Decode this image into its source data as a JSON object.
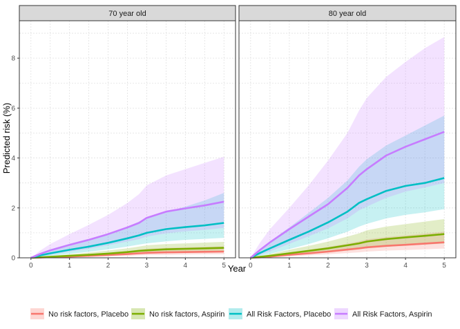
{
  "chart_data": {
    "type": "line",
    "ylabel": "Predicted risk (%)",
    "xlabel": "Year",
    "xlim": [
      -0.3,
      5.3
    ],
    "ylim": [
      0,
      9.5
    ],
    "x_ticks": [
      0,
      1,
      2,
      3,
      4,
      5
    ],
    "y_ticks": [
      0,
      2,
      4,
      6,
      8
    ],
    "x": [
      0,
      0.25,
      0.5,
      1,
      1.5,
      2,
      2.5,
      2.8,
      3,
      3.5,
      4,
      4.5,
      5
    ],
    "legend_position": "bottom",
    "panels": [
      {
        "title": "70 year old",
        "series": [
          {
            "name": "No risk factors, Placebo",
            "color": "#F8766D",
            "values": [
              0,
              0.01,
              0.03,
              0.05,
              0.08,
              0.11,
              0.15,
              0.18,
              0.2,
              0.22,
              0.23,
              0.24,
              0.25
            ],
            "lower": [
              0,
              0,
              0.01,
              0.02,
              0.04,
              0.06,
              0.08,
              0.1,
              0.11,
              0.12,
              0.13,
              0.14,
              0.14
            ],
            "upper": [
              0,
              0.03,
              0.06,
              0.1,
              0.15,
              0.2,
              0.27,
              0.32,
              0.36,
              0.4,
              0.42,
              0.44,
              0.46
            ]
          },
          {
            "name": "No risk factors, Aspirin",
            "color": "#7CAE00",
            "values": [
              0,
              0.02,
              0.04,
              0.08,
              0.12,
              0.17,
              0.23,
              0.28,
              0.3,
              0.34,
              0.36,
              0.38,
              0.4
            ],
            "lower": [
              0,
              0.01,
              0.02,
              0.04,
              0.07,
              0.1,
              0.14,
              0.17,
              0.18,
              0.2,
              0.22,
              0.23,
              0.24
            ],
            "upper": [
              0,
              0.04,
              0.08,
              0.14,
              0.21,
              0.29,
              0.38,
              0.45,
              0.5,
              0.55,
              0.58,
              0.61,
              0.64
            ]
          },
          {
            "name": "All Risk Factors, Placebo",
            "color": "#00BFC4",
            "values": [
              0,
              0.1,
              0.18,
              0.32,
              0.45,
              0.6,
              0.78,
              0.9,
              1.0,
              1.15,
              1.23,
              1.3,
              1.4
            ],
            "lower": [
              0,
              0.04,
              0.08,
              0.16,
              0.24,
              0.34,
              0.45,
              0.53,
              0.58,
              0.66,
              0.72,
              0.76,
              0.8
            ],
            "upper": [
              0,
              0.2,
              0.34,
              0.56,
              0.76,
              0.98,
              1.25,
              1.45,
              1.6,
              1.85,
              2.05,
              2.3,
              2.6
            ]
          },
          {
            "name": "All Risk Factors, Aspirin",
            "color": "#C77CFF",
            "values": [
              0,
              0.16,
              0.3,
              0.52,
              0.72,
              0.95,
              1.22,
              1.4,
              1.6,
              1.85,
              1.98,
              2.1,
              2.25
            ],
            "lower": [
              0,
              0.06,
              0.12,
              0.25,
              0.36,
              0.5,
              0.65,
              0.75,
              0.85,
              0.98,
              1.06,
              1.12,
              1.2
            ],
            "upper": [
              0,
              0.3,
              0.55,
              0.95,
              1.32,
              1.72,
              2.2,
              2.55,
              2.9,
              3.3,
              3.55,
              3.8,
              4.05
            ]
          }
        ]
      },
      {
        "title": "80 year old",
        "series": [
          {
            "name": "No risk factors, Placebo",
            "color": "#F8766D",
            "values": [
              0,
              0.02,
              0.05,
              0.12,
              0.18,
              0.25,
              0.33,
              0.38,
              0.42,
              0.48,
              0.52,
              0.57,
              0.62
            ],
            "lower": [
              0,
              0.01,
              0.02,
              0.06,
              0.1,
              0.14,
              0.19,
              0.22,
              0.25,
              0.29,
              0.31,
              0.34,
              0.37
            ],
            "upper": [
              0,
              0.05,
              0.1,
              0.22,
              0.32,
              0.44,
              0.57,
              0.66,
              0.74,
              0.83,
              0.9,
              0.97,
              1.05
            ]
          },
          {
            "name": "No risk factors, Aspirin",
            "color": "#7CAE00",
            "values": [
              0,
              0.04,
              0.08,
              0.18,
              0.28,
              0.38,
              0.5,
              0.58,
              0.65,
              0.75,
              0.82,
              0.88,
              0.95
            ],
            "lower": [
              0,
              0.02,
              0.04,
              0.1,
              0.16,
              0.22,
              0.29,
              0.34,
              0.38,
              0.44,
              0.49,
              0.53,
              0.57
            ],
            "upper": [
              0,
              0.08,
              0.15,
              0.32,
              0.48,
              0.65,
              0.85,
              0.98,
              1.1,
              1.25,
              1.35,
              1.45,
              1.55
            ]
          },
          {
            "name": "All Risk Factors, Placebo",
            "color": "#00BFC4",
            "values": [
              0,
              0.2,
              0.38,
              0.72,
              1.05,
              1.42,
              1.85,
              2.2,
              2.35,
              2.68,
              2.88,
              3.0,
              3.2
            ],
            "lower": [
              0,
              0.08,
              0.16,
              0.35,
              0.55,
              0.78,
              1.05,
              1.25,
              1.36,
              1.58,
              1.72,
              1.82,
              1.95
            ],
            "upper": [
              0,
              0.35,
              0.66,
              1.22,
              1.8,
              2.4,
              3.1,
              3.65,
              3.95,
              4.5,
              4.9,
              5.3,
              5.7
            ]
          },
          {
            "name": "All Risk Factors, Aspirin",
            "color": "#C77CFF",
            "values": [
              0,
              0.32,
              0.62,
              1.15,
              1.65,
              2.15,
              2.8,
              3.3,
              3.55,
              4.1,
              4.45,
              4.75,
              5.05
            ],
            "lower": [
              0,
              0.12,
              0.26,
              0.56,
              0.86,
              1.18,
              1.58,
              1.9,
              2.05,
              2.4,
              2.65,
              2.82,
              3.0
            ],
            "upper": [
              0,
              0.62,
              1.15,
              2.0,
              2.9,
              3.9,
              5.0,
              5.9,
              6.4,
              7.25,
              7.85,
              8.4,
              8.85
            ]
          }
        ]
      }
    ]
  }
}
